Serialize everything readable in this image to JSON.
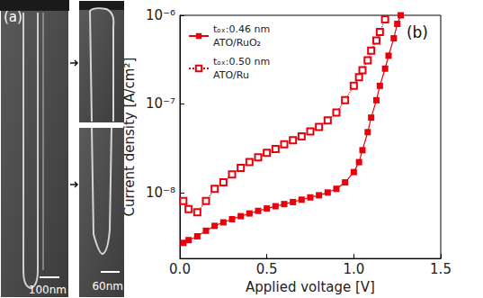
{
  "panel_a": {
    "label": "(a)",
    "scale_bars": [
      "100nm",
      "60nm"
    ]
  },
  "chart_data": {
    "type": "line",
    "title": "(b)",
    "x_label": "Applied voltage [V]",
    "y_label": "Current density [A/cm²]",
    "log": "y",
    "grid": false,
    "legend": "upper left",
    "xlim": [
      0,
      1.5
    ],
    "xticks": [
      {
        "value": 0,
        "label": "0.0"
      },
      {
        "value": 0.5,
        "label": "0.5"
      },
      {
        "value": 1,
        "label": "1.0"
      },
      {
        "value": 1.5,
        "label": "1.5"
      }
    ],
    "ylim": [
      1.8e-09,
      1e-06
    ],
    "yticks": [
      {
        "value": 1e-08,
        "label": "10⁻⁸"
      },
      {
        "value": 1e-07,
        "label": "10⁻⁷"
      },
      {
        "value": 1e-06,
        "label": "10⁻⁶"
      }
    ],
    "series": [
      {
        "name": "tₒₓ:0.46 nm\nATO/RuO₂",
        "color": "#e8000b",
        "marker": "square",
        "line_style": "solid",
        "x": [
          0.02,
          0.05,
          0.1,
          0.15,
          0.2,
          0.25,
          0.3,
          0.35,
          0.4,
          0.45,
          0.5,
          0.55,
          0.6,
          0.65,
          0.7,
          0.75,
          0.8,
          0.85,
          0.9,
          0.95,
          1.0,
          1.03,
          1.05,
          1.08,
          1.1,
          1.13,
          1.15,
          1.18,
          1.2,
          1.23,
          1.25,
          1.27
        ],
        "values": [
          2.7e-09,
          2.9e-09,
          3.2e-09,
          3.7e-09,
          4.2e-09,
          4.6e-09,
          5e-09,
          5.4e-09,
          5.8e-09,
          6.2e-09,
          6.6e-09,
          7e-09,
          7.4e-09,
          7.8e-09,
          8.3e-09,
          8.8e-09,
          9.3e-09,
          1e-08,
          1.1e-08,
          1.3e-08,
          1.7e-08,
          2.2e-08,
          3e-08,
          4.8e-08,
          7e-08,
          1.1e-07,
          1.6e-07,
          2.5e-07,
          3.5e-07,
          5.5e-07,
          8e-07,
          1e-06
        ]
      },
      {
        "name": "tₒₓ:0.50 nm\nATO/Ru",
        "color": "#e8000b",
        "marker": "open-square",
        "line_style": "dotted",
        "x": [
          0.02,
          0.05,
          0.1,
          0.15,
          0.2,
          0.25,
          0.3,
          0.35,
          0.4,
          0.45,
          0.5,
          0.55,
          0.6,
          0.65,
          0.7,
          0.75,
          0.8,
          0.85,
          0.9,
          0.95,
          1.0,
          1.03,
          1.05,
          1.08,
          1.1,
          1.13,
          1.15,
          1.18
        ],
        "values": [
          8e-09,
          6.5e-09,
          6e-09,
          8e-09,
          1.1e-08,
          1.3e-08,
          1.6e-08,
          1.9e-08,
          2.2e-08,
          2.5e-08,
          2.8e-08,
          3.1e-08,
          3.5e-08,
          3.9e-08,
          4.3e-08,
          4.9e-08,
          5.5e-08,
          6.5e-08,
          8e-08,
          1.1e-07,
          1.6e-07,
          2e-07,
          2.4e-07,
          3.1e-07,
          4e-07,
          5.2e-07,
          6.5e-07,
          9e-07
        ]
      }
    ]
  }
}
